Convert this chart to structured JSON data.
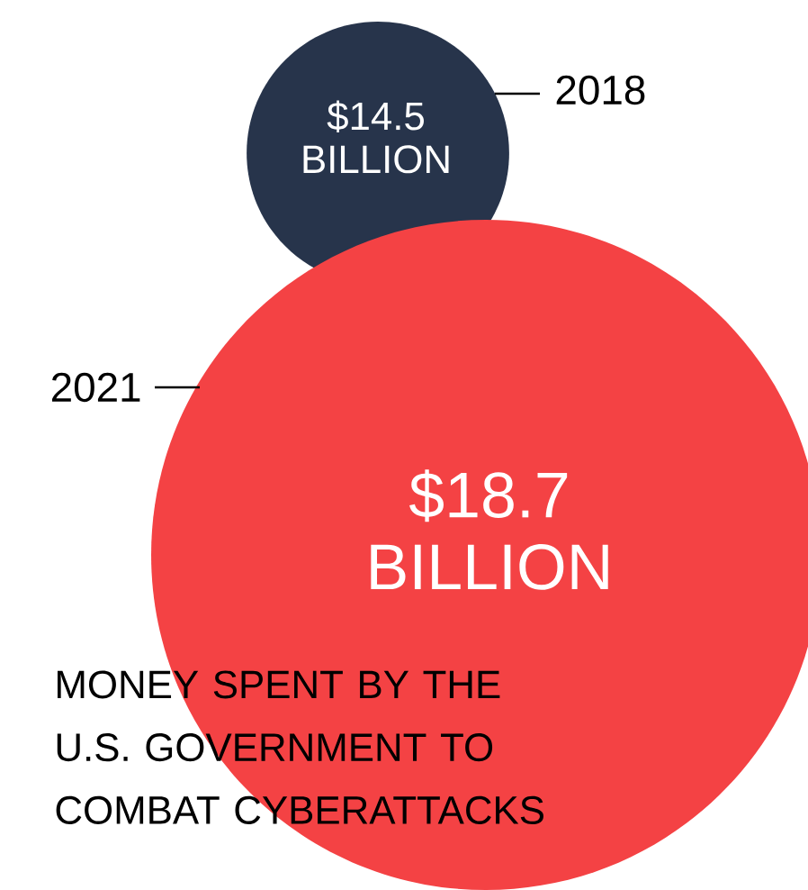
{
  "chart_data": {
    "type": "other",
    "title": "MONEY SPENT BY THE U.S. GOVERNMENT TO COMBAT CYBERATTACKS",
    "categories": [
      "2018",
      "2021"
    ],
    "values": [
      14.5,
      18.7
    ],
    "value_labels": [
      "$14.5 BILLION",
      "$18.7 BILLION"
    ],
    "colors": [
      "#27344b",
      "#f44244"
    ]
  }
}
